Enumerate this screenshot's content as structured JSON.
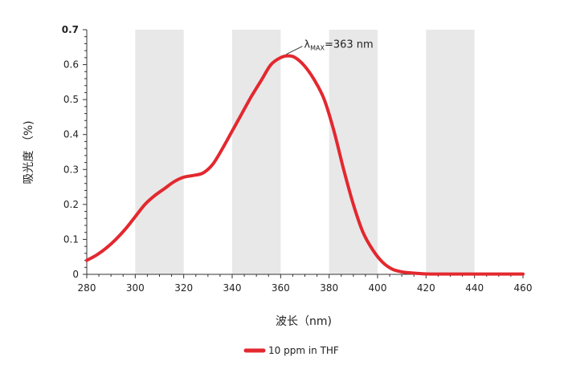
{
  "chart_data": {
    "type": "line",
    "title": "",
    "xlabel": "波长（nm)",
    "ylabel": "吸光度 （%)",
    "xlim": [
      280,
      460
    ],
    "ylim": [
      0,
      0.7
    ],
    "x_ticks": [
      "280",
      "300",
      "320",
      "340",
      "360",
      "380",
      "400",
      "420",
      "440",
      "460"
    ],
    "y_ticks": [
      "0",
      "0.1",
      "0.2",
      "0.3",
      "0.4",
      "0.5",
      "0.6",
      "0.7"
    ],
    "shaded_bands": [
      [
        300,
        320
      ],
      [
        340,
        360
      ],
      [
        380,
        400
      ],
      [
        420,
        440
      ]
    ],
    "band_color": "#e8e8e8",
    "grid": false,
    "legend_position": "bottom-center",
    "series": [
      {
        "name": "10 ppm in THF",
        "color": "#e3282f",
        "x": [
          280,
          284,
          288,
          292,
          296,
          300,
          304,
          308,
          312,
          316,
          320,
          324,
          328,
          332,
          336,
          340,
          344,
          348,
          352,
          356,
          360,
          363,
          366,
          370,
          374,
          378,
          382,
          386,
          390,
          394,
          398,
          402,
          406,
          410,
          414,
          418,
          422,
          430,
          440,
          450,
          460
        ],
        "y": [
          0.04,
          0.055,
          0.075,
          0.1,
          0.13,
          0.165,
          0.2,
          0.225,
          0.245,
          0.265,
          0.278,
          0.283,
          0.29,
          0.315,
          0.36,
          0.41,
          0.46,
          0.51,
          0.555,
          0.6,
          0.62,
          0.625,
          0.62,
          0.595,
          0.555,
          0.5,
          0.41,
          0.3,
          0.2,
          0.12,
          0.07,
          0.035,
          0.015,
          0.007,
          0.004,
          0.002,
          0.001,
          0.001,
          0.001,
          0.001,
          0.001
        ]
      }
    ],
    "annotations": [
      {
        "text_lambda": "λ",
        "text_sub": "MAX",
        "text_rest": "=363 nm",
        "x": 363,
        "y": 0.625
      }
    ]
  }
}
